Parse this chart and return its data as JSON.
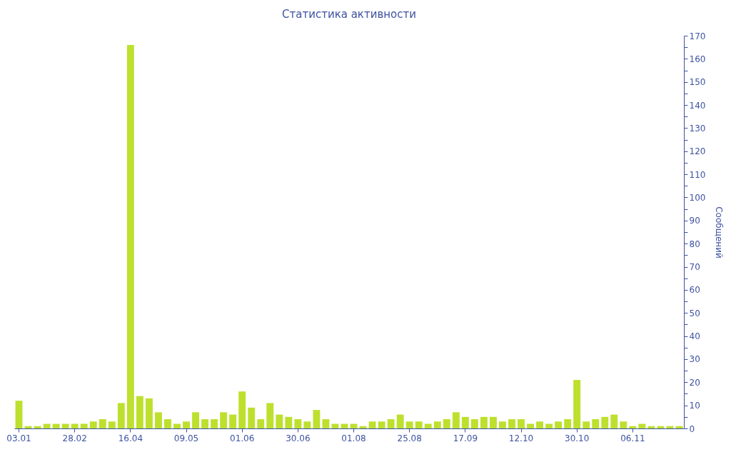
{
  "chart_data": {
    "type": "bar",
    "title": "Статистика активности",
    "ylabel": "Сообщений",
    "categories": [
      "03.01",
      null,
      null,
      null,
      null,
      null,
      "28.02",
      null,
      null,
      null,
      null,
      null,
      "16.04",
      null,
      null,
      null,
      null,
      null,
      "09.05",
      null,
      null,
      null,
      null,
      null,
      "01.06",
      null,
      null,
      null,
      null,
      null,
      "30.06",
      null,
      null,
      null,
      null,
      null,
      "01.08",
      null,
      null,
      null,
      null,
      null,
      "25.08",
      null,
      null,
      null,
      null,
      null,
      "17.09",
      null,
      null,
      null,
      null,
      null,
      "12.10",
      null,
      null,
      null,
      null,
      null,
      "30.10",
      null,
      null,
      null,
      null,
      null,
      "06.11",
      null,
      null,
      null,
      null,
      null
    ],
    "values": [
      12,
      1,
      1,
      2,
      2,
      2,
      2,
      2,
      3,
      4,
      3,
      11,
      166,
      14,
      13,
      7,
      4,
      2,
      3,
      7,
      4,
      4,
      7,
      6,
      16,
      9,
      4,
      11,
      6,
      5,
      4,
      3,
      8,
      4,
      2,
      2,
      2,
      1,
      3,
      3,
      4,
      6,
      3,
      3,
      2,
      3,
      4,
      7,
      5,
      4,
      5,
      5,
      3,
      4,
      4,
      2,
      3,
      2,
      3,
      4,
      21,
      3,
      4,
      5,
      6,
      3,
      1,
      2,
      1,
      1,
      1,
      1
    ],
    "color": "#bde02e",
    "ylim": [
      0,
      170
    ],
    "yticks": [
      0,
      {
        "value": 5,
        "label": null
      },
      10,
      {
        "value": 15,
        "label": null
      },
      20,
      {
        "value": 25,
        "label": null
      },
      30,
      {
        "value": 35,
        "label": null
      },
      40,
      {
        "value": 45,
        "label": null
      },
      50,
      {
        "value": 55,
        "label": null
      },
      60,
      {
        "value": 65,
        "label": null
      },
      70,
      {
        "value": 75,
        "label": null
      },
      80,
      {
        "value": 85,
        "label": null
      },
      90,
      {
        "value": 95,
        "label": null
      },
      100,
      {
        "value": 105,
        "label": null
      },
      110,
      {
        "value": 115,
        "label": null
      },
      120,
      {
        "value": 125,
        "label": null
      },
      130,
      {
        "value": 135,
        "label": null
      },
      140,
      {
        "value": 145,
        "label": null
      },
      150,
      {
        "value": 155,
        "label": null
      },
      160,
      {
        "value": 165,
        "label": null
      },
      170
    ]
  }
}
